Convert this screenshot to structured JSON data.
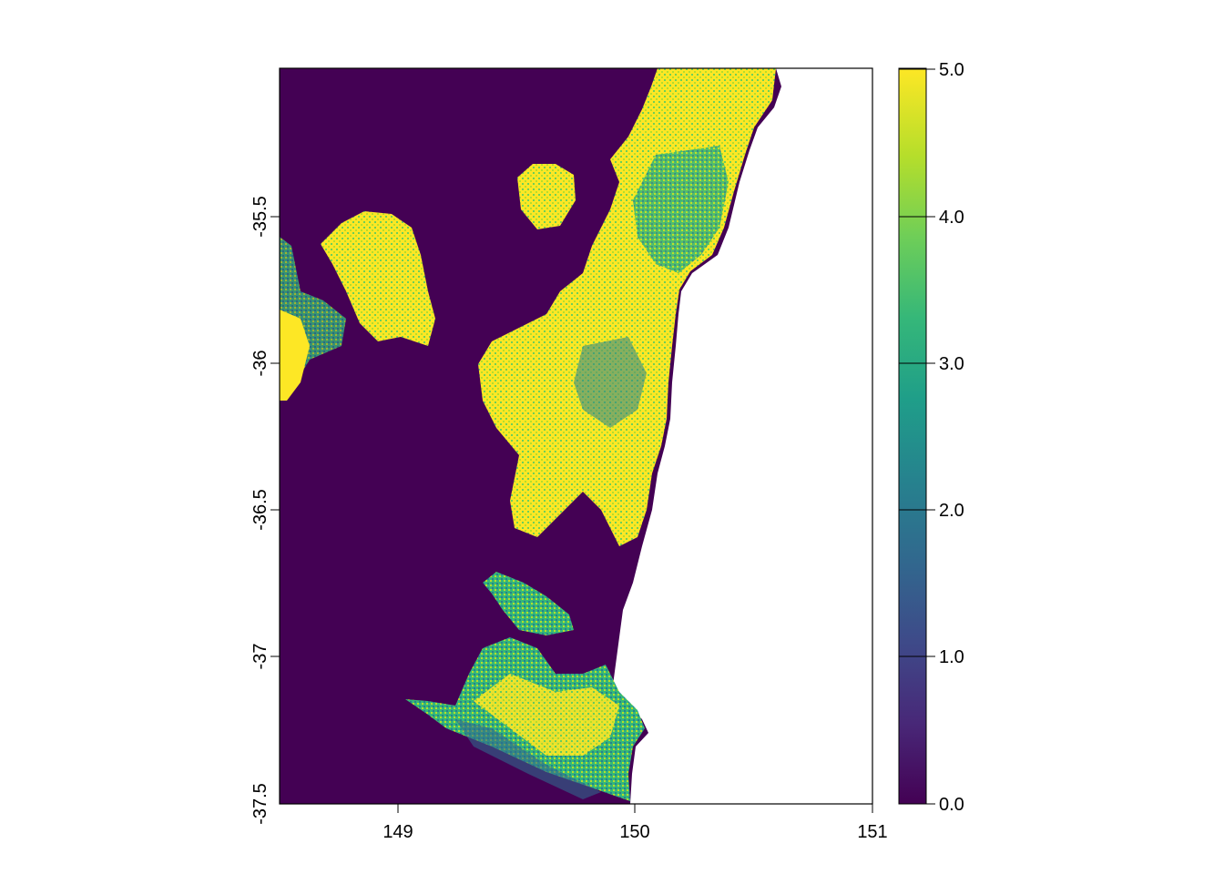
{
  "map": {
    "x_axis": {
      "ticks": [
        "149",
        "150",
        "151"
      ]
    },
    "y_axis": {
      "ticks": [
        "-35.5",
        "-36",
        "-36.5",
        "-37",
        "-37.5"
      ]
    },
    "legend": {
      "ticks": [
        "0.0",
        "1.0",
        "2.0",
        "3.0",
        "4.0",
        "5.0"
      ],
      "range": [
        0,
        5
      ],
      "palette": [
        "#440154",
        "#482878",
        "#3e4a89",
        "#31688e",
        "#26828e",
        "#1f9e89",
        "#35b779",
        "#6ece58",
        "#b5de2b",
        "#fde725"
      ]
    },
    "colors": {
      "background_raster": "#440154",
      "sea": "#ffffff"
    }
  }
}
